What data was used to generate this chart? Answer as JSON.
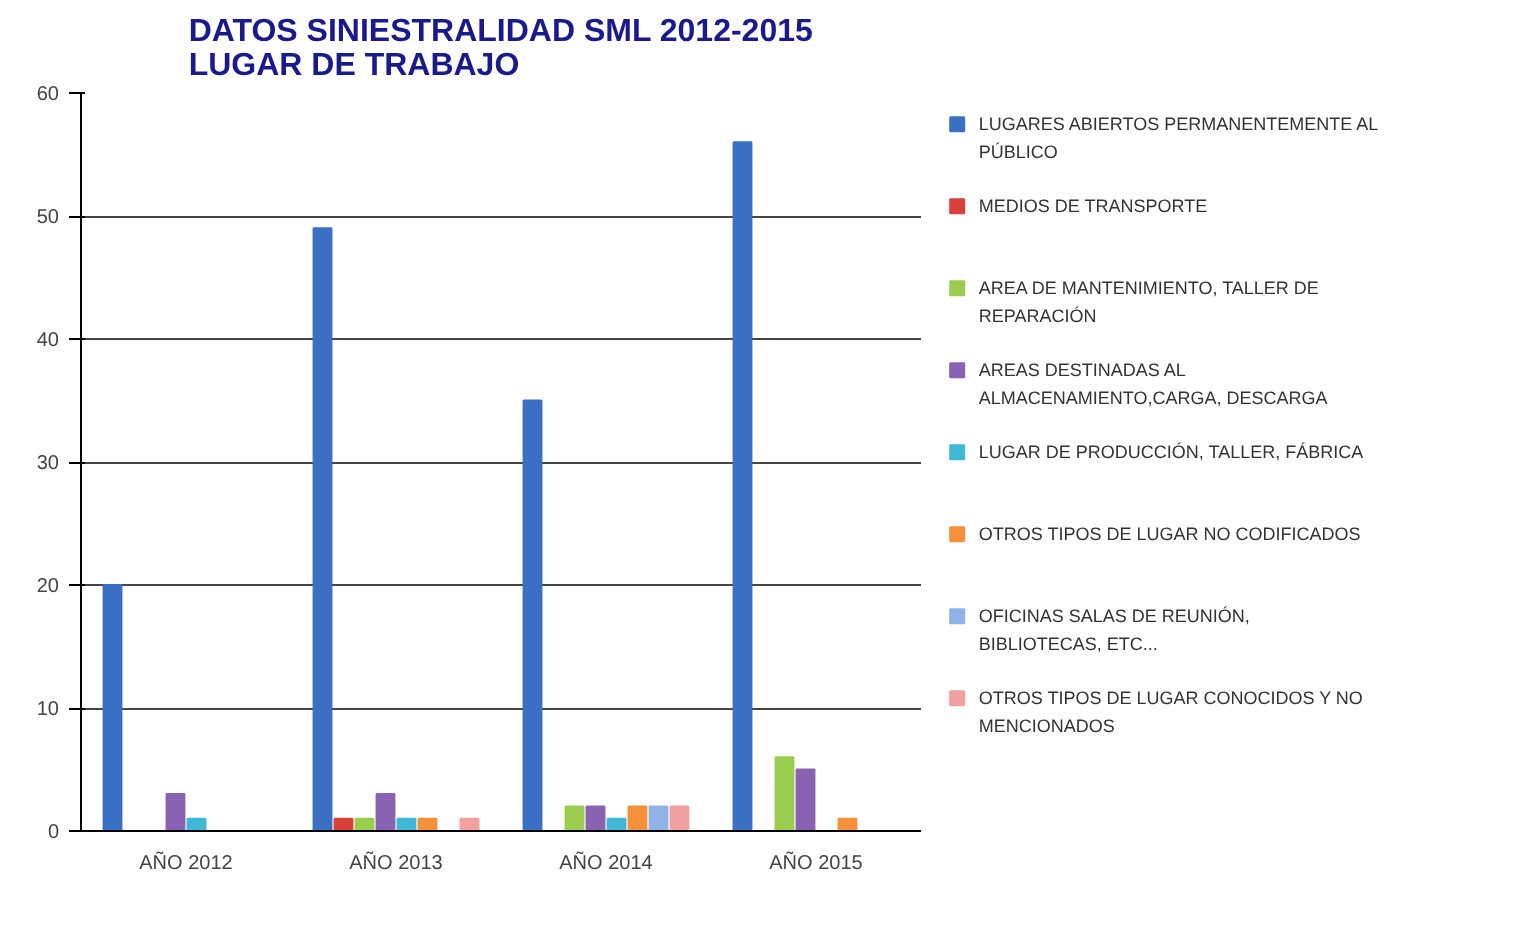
{
  "chart_data": {
    "type": "bar",
    "title": "DATOS SINIESTRALIDAD SML 2012-2015\nLUGAR DE TRABAJO",
    "categories": [
      "AÑO 2012",
      "AÑO 2013",
      "AÑO 2014",
      "AÑO 2015"
    ],
    "series": [
      {
        "name": "LUGARES ABIERTOS PERMANENTEMENTE AL PÚBLICO",
        "color": "#3a70c4",
        "values": [
          20,
          49,
          35,
          56
        ]
      },
      {
        "name": "MEDIOS DE TRANSPORTE",
        "color": "#d9403a",
        "values": [
          0,
          1,
          0,
          0
        ]
      },
      {
        "name": "AREA DE MANTENIMIENTO, TALLER DE REPARACIÓN",
        "color": "#9acd4e",
        "values": [
          0,
          1,
          2,
          6
        ]
      },
      {
        "name": "AREAS DESTINADAS AL ALMACENAMIENTO,CARGA, DESCARGA",
        "color": "#8a62b4",
        "values": [
          3,
          3,
          2,
          5
        ]
      },
      {
        "name": "LUGAR DE PRODUCCIÓN, TALLER, FÁBRICA",
        "color": "#3fb8d8",
        "values": [
          1,
          1,
          1,
          0
        ]
      },
      {
        "name": "OTROS TIPOS DE LUGAR NO CODIFICADOS",
        "color": "#f5913a",
        "values": [
          0,
          1,
          2,
          1
        ]
      },
      {
        "name": "OFICINAS SALAS DE REUNIÓN, BIBLIOTECAS, ETC...",
        "color": "#8fb3e8",
        "values": [
          0,
          0,
          2,
          0
        ]
      },
      {
        "name": "OTROS TIPOS DE LUGAR CONOCIDOS Y NO MENCIONADOS",
        "color": "#f0a0a0",
        "values": [
          0,
          1,
          2,
          0
        ]
      }
    ],
    "ylim": [
      0,
      60
    ],
    "yticks": [
      0,
      10,
      20,
      30,
      40,
      50,
      60
    ],
    "grid": "y",
    "legend": "right"
  }
}
